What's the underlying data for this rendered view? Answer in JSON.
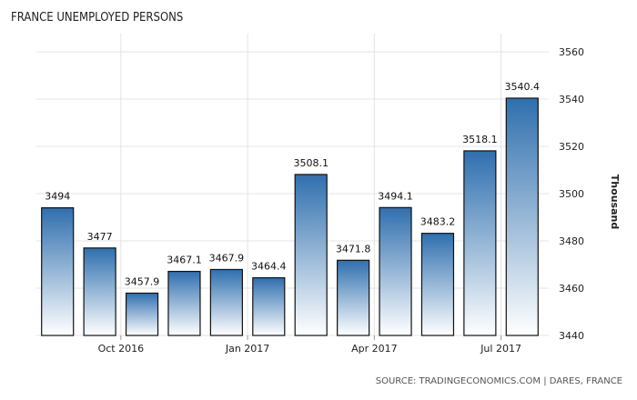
{
  "chart_data": {
    "type": "bar",
    "title": "FRANCE UNEMPLOYED PERSONS",
    "ylabel": "Thousand",
    "source": "SOURCE: TRADINGECONOMICS.COM | DARES, FRANCE",
    "ylim": [
      3440,
      3560
    ],
    "yticks": [
      "3440",
      "3460",
      "3480",
      "3500",
      "3520",
      "3540",
      "3560"
    ],
    "xticks": [
      {
        "label": "Oct 2016",
        "after_bar": 1
      },
      {
        "label": "Jan 2017",
        "after_bar": 4
      },
      {
        "label": "Apr 2017",
        "after_bar": 7
      },
      {
        "label": "Jul 2017",
        "after_bar": 10
      }
    ],
    "grid": true,
    "values": [
      3494,
      3477,
      3457.9,
      3467.1,
      3467.9,
      3464.4,
      3508.1,
      3471.8,
      3494.1,
      3483.2,
      3518.1,
      3540.4
    ],
    "value_labels": [
      "3494",
      "3477",
      "3457.9",
      "3467.1",
      "3467.9",
      "3464.4",
      "3508.1",
      "3471.8",
      "3494.1",
      "3483.2",
      "3518.1",
      "3540.4"
    ],
    "colors": {
      "bar_top": "#2f6fae",
      "bar_bottom": "#ffffff",
      "bar_stroke": "#111111",
      "grid": "#e4e4e4"
    }
  }
}
